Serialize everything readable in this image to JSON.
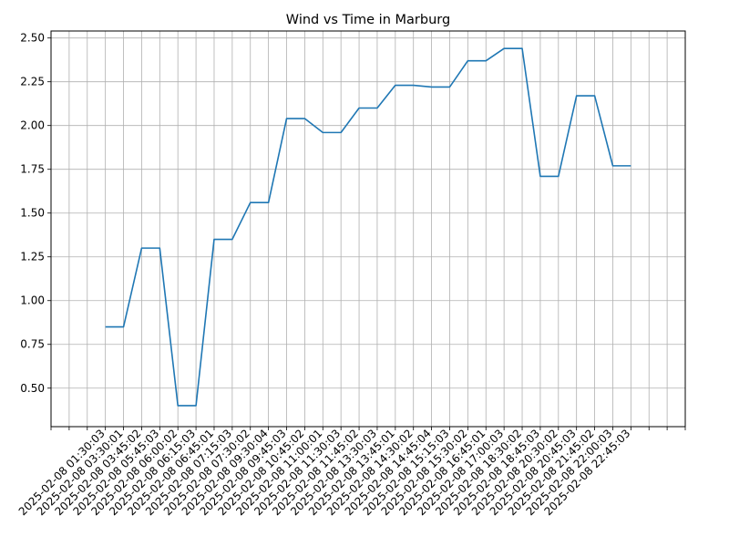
{
  "chart_data": {
    "type": "line",
    "title": "Wind vs Time in Marburg",
    "xlabel": "",
    "ylabel": "",
    "ylim": [
      0.28,
      2.54
    ],
    "grid": true,
    "color": "#1f77b4",
    "yticks": [
      0.5,
      0.75,
      1.0,
      1.25,
      1.5,
      1.75,
      2.0,
      2.25,
      2.5
    ],
    "xtick_labels_visible": [
      "2025-02-08 01:30:03",
      "2025-02-08 18:00:02"
    ],
    "series": [
      {
        "values": [
          [
            "2025-02-08 01:30:03",
            0.85
          ],
          [
            "2025-02-08 03:30:01",
            0.85
          ],
          [
            "2025-02-08 03:45:02",
            1.3
          ],
          [
            "2025-02-08 05:45:03",
            1.3
          ],
          [
            "2025-02-08 06:00:02",
            0.4
          ],
          [
            "2025-02-08 06:15:03",
            0.4
          ],
          [
            "2025-02-08 06:45:01",
            1.35
          ],
          [
            "2025-02-08 07:15:03",
            1.35
          ],
          [
            "2025-02-08 07:30:02",
            1.56
          ],
          [
            "2025-02-08 09:30:04",
            1.56
          ],
          [
            "2025-02-08 09:45:03",
            2.04
          ],
          [
            "2025-02-08 10:45:02",
            2.04
          ],
          [
            "2025-02-08 11:00:01",
            1.96
          ],
          [
            "2025-02-08 11:30:03",
            1.96
          ],
          [
            "2025-02-08 11:45:02",
            2.1
          ],
          [
            "2025-02-08 13:30:03",
            2.1
          ],
          [
            "2025-02-08 13:45:01",
            2.23
          ],
          [
            "2025-02-08 14:30:02",
            2.23
          ],
          [
            "2025-02-08 14:45:04",
            2.22
          ],
          [
            "2025-02-08 15:15:03",
            2.22
          ],
          [
            "2025-02-08 15:30:02",
            2.37
          ],
          [
            "2025-02-08 16:45:01",
            2.37
          ],
          [
            "2025-02-08 17:00:03",
            2.44
          ],
          [
            "2025-02-08 18:30:02",
            2.44
          ],
          [
            "2025-02-08 18:45:03",
            1.71
          ],
          [
            "2025-02-08 20:30:02",
            1.71
          ],
          [
            "2025-02-08 20:45:03",
            2.17
          ],
          [
            "2025-02-08 21:45:02",
            2.17
          ],
          [
            "2025-02-08 22:00:03",
            1.77
          ],
          [
            "2025-02-08 22:45:03",
            1.77
          ]
        ]
      }
    ]
  }
}
